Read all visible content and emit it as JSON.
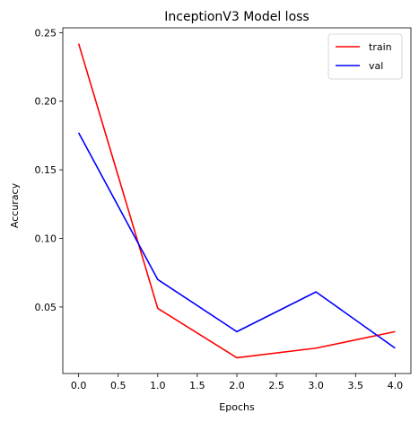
{
  "chart_data": {
    "type": "line",
    "title": "InceptionV3 Model loss",
    "xlabel": "Epochs",
    "ylabel": "Accuracy",
    "x": [
      0,
      1,
      2,
      3,
      4
    ],
    "series": [
      {
        "name": "train",
        "color": "#ff0000",
        "values": [
          0.242,
          0.049,
          0.013,
          0.02,
          0.032
        ]
      },
      {
        "name": "val",
        "color": "#0000ff",
        "values": [
          0.177,
          0.07,
          0.032,
          0.061,
          0.02
        ]
      }
    ],
    "xlim": [
      -0.2,
      4.2
    ],
    "ylim": [
      0.0015,
      0.2535
    ],
    "xticks": [
      0.0,
      0.5,
      1.0,
      1.5,
      2.0,
      2.5,
      3.0,
      3.5,
      4.0
    ],
    "xtick_labels": [
      "0.0",
      "0.5",
      "1.0",
      "1.5",
      "2.0",
      "2.5",
      "3.0",
      "3.5",
      "4.0"
    ],
    "yticks": [
      0.05,
      0.1,
      0.15,
      0.2,
      0.25
    ],
    "ytick_labels": [
      "0.05",
      "0.10",
      "0.15",
      "0.20",
      "0.25"
    ],
    "legend_position": "top-right",
    "grid": false
  }
}
